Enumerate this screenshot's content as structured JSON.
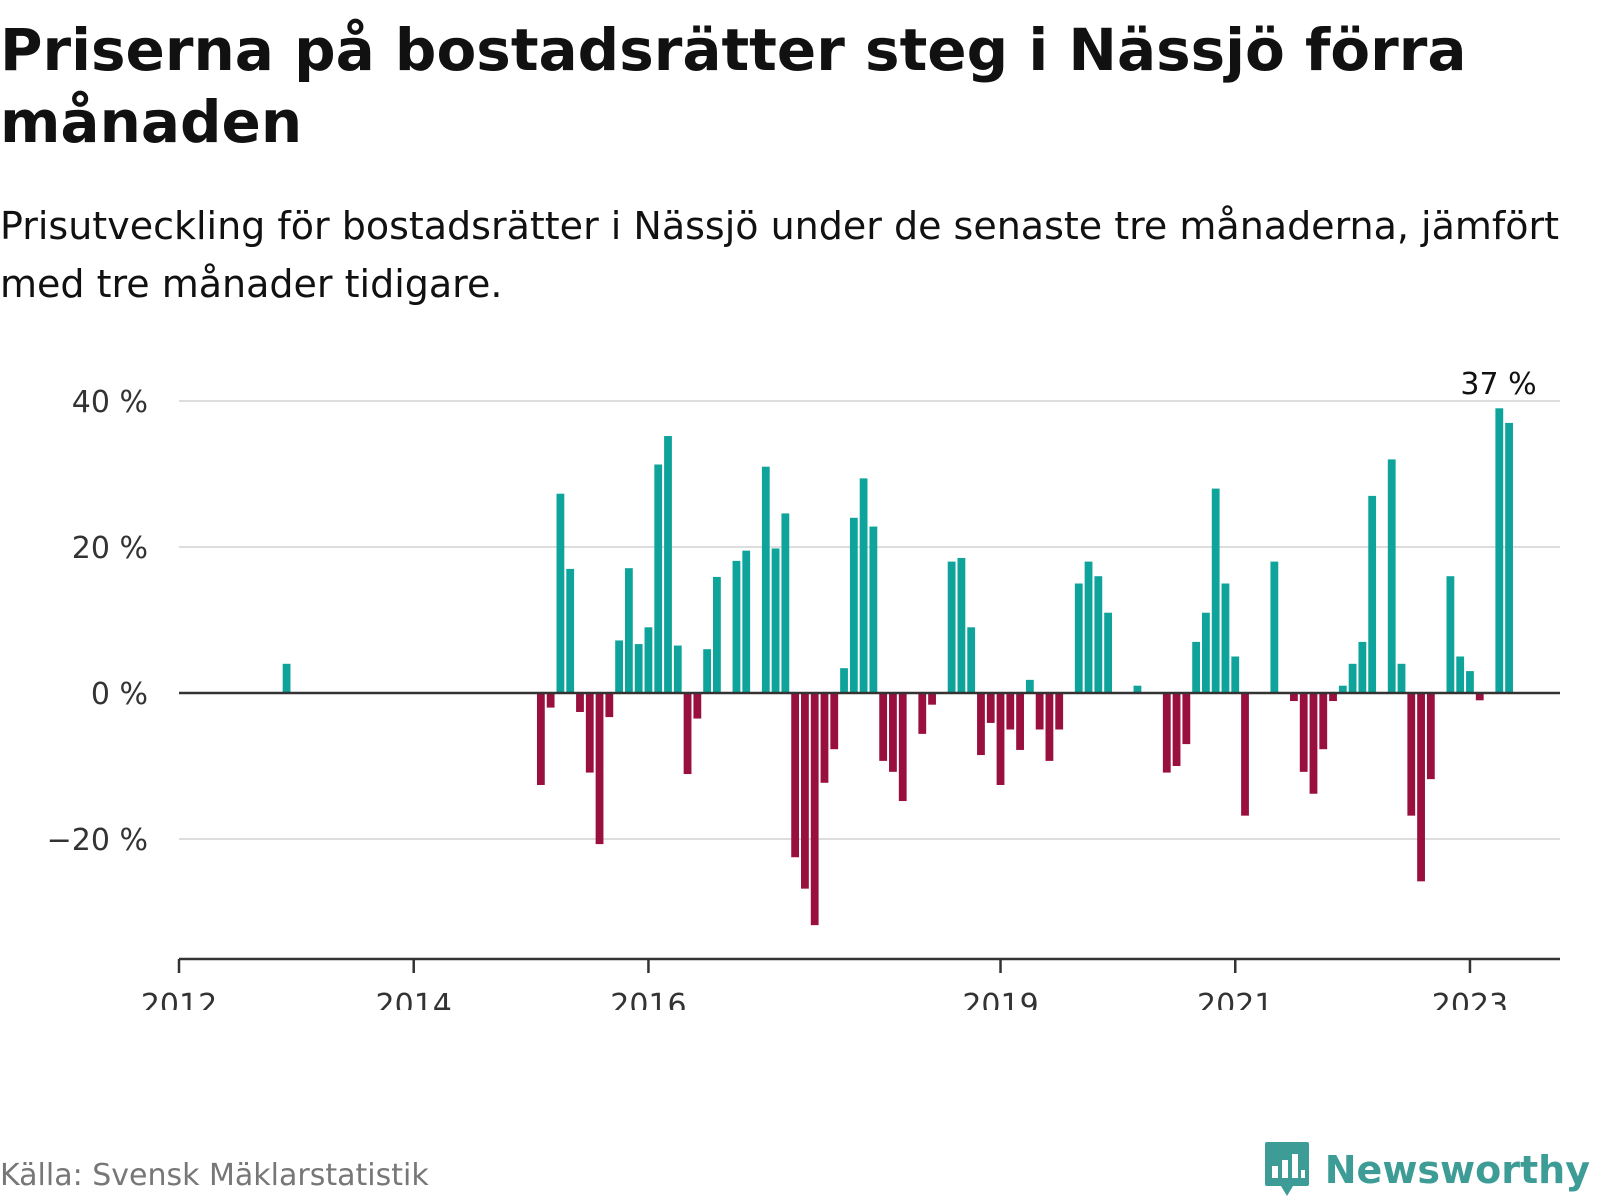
{
  "header": {
    "title": "Priserna på bostadsrätter steg i Nässjö förra månaden",
    "subtitle": "Prisutveckling för bostadsrätter i Nässjö under de senaste tre månaderna, jämfört med tre månader tidigare."
  },
  "footer": {
    "source": "Källa: Svensk Mäklarstatistik",
    "brand": "Newsworthy"
  },
  "colors": {
    "positive": "#0ea49b",
    "negative": "#990f3d",
    "grid": "#dddddd",
    "axis": "#333333",
    "brand": "#3e9c96"
  },
  "chart_data": {
    "type": "bar",
    "ylim": [
      -36,
      40
    ],
    "y_ticks": [
      {
        "value": 40,
        "label": "40 %"
      },
      {
        "value": 20,
        "label": "20 %"
      },
      {
        "value": 0,
        "label": "0 %"
      },
      {
        "value": -20,
        "label": "−20 %"
      }
    ],
    "x_ticks": [
      {
        "x": "2012-01",
        "label": "2012"
      },
      {
        "x": "2014-01",
        "label": "2014"
      },
      {
        "x": "2016-01",
        "label": "2016"
      },
      {
        "x": "2019-01",
        "label": "2019"
      },
      {
        "x": "2021-01",
        "label": "2021"
      },
      {
        "x": "2023-01",
        "label": "2023"
      }
    ],
    "xlim": [
      "2012-01",
      "2023-08"
    ],
    "annotation": {
      "x": "2023-03",
      "text": "37 %"
    },
    "points": [
      {
        "x": "2012-12",
        "y": 4
      },
      {
        "x": "2015-02",
        "y": -12.6
      },
      {
        "x": "2015-03",
        "y": -2
      },
      {
        "x": "2015-04",
        "y": 27.3
      },
      {
        "x": "2015-05",
        "y": 17
      },
      {
        "x": "2015-06",
        "y": -2.6
      },
      {
        "x": "2015-07",
        "y": -10.9
      },
      {
        "x": "2015-08",
        "y": -20.7
      },
      {
        "x": "2015-09",
        "y": -3.3
      },
      {
        "x": "2015-10",
        "y": 7.2
      },
      {
        "x": "2015-11",
        "y": 17.1
      },
      {
        "x": "2015-12",
        "y": 6.7
      },
      {
        "x": "2016-01",
        "y": 9
      },
      {
        "x": "2016-02",
        "y": 31.3
      },
      {
        "x": "2016-03",
        "y": 35.2
      },
      {
        "x": "2016-04",
        "y": 6.5
      },
      {
        "x": "2016-05",
        "y": -11.1
      },
      {
        "x": "2016-06",
        "y": -3.5
      },
      {
        "x": "2016-07",
        "y": 6
      },
      {
        "x": "2016-08",
        "y": 15.9
      },
      {
        "x": "2016-10",
        "y": 18.1
      },
      {
        "x": "2016-11",
        "y": 19.5
      },
      {
        "x": "2017-01",
        "y": 31
      },
      {
        "x": "2017-02",
        "y": 19.8
      },
      {
        "x": "2017-03",
        "y": 24.6
      },
      {
        "x": "2017-04",
        "y": -22.5
      },
      {
        "x": "2017-05",
        "y": -26.8
      },
      {
        "x": "2017-06",
        "y": -31.8
      },
      {
        "x": "2017-07",
        "y": -12.3
      },
      {
        "x": "2017-08",
        "y": -7.7
      },
      {
        "x": "2017-09",
        "y": 3.4
      },
      {
        "x": "2017-10",
        "y": 24
      },
      {
        "x": "2017-11",
        "y": 29.4
      },
      {
        "x": "2017-12",
        "y": 22.8
      },
      {
        "x": "2018-01",
        "y": -9.3
      },
      {
        "x": "2018-02",
        "y": -10.8
      },
      {
        "x": "2018-03",
        "y": -14.8
      },
      {
        "x": "2018-05",
        "y": -5.6
      },
      {
        "x": "2018-06",
        "y": -1.6
      },
      {
        "x": "2018-08",
        "y": 18
      },
      {
        "x": "2018-09",
        "y": 18.5
      },
      {
        "x": "2018-10",
        "y": 9
      },
      {
        "x": "2018-11",
        "y": -8.5
      },
      {
        "x": "2018-12",
        "y": -4.1
      },
      {
        "x": "2019-01",
        "y": -12.6
      },
      {
        "x": "2019-02",
        "y": -5
      },
      {
        "x": "2019-03",
        "y": -7.8
      },
      {
        "x": "2019-04",
        "y": 1.8
      },
      {
        "x": "2019-05",
        "y": -5
      },
      {
        "x": "2019-06",
        "y": -9.3
      },
      {
        "x": "2019-07",
        "y": -5
      },
      {
        "x": "2019-09",
        "y": 15
      },
      {
        "x": "2019-10",
        "y": 18
      },
      {
        "x": "2019-11",
        "y": 16
      },
      {
        "x": "2019-12",
        "y": 11
      },
      {
        "x": "2020-03",
        "y": 1
      },
      {
        "x": "2020-06",
        "y": -10.9
      },
      {
        "x": "2020-07",
        "y": -10
      },
      {
        "x": "2020-08",
        "y": -7
      },
      {
        "x": "2020-09",
        "y": 7
      },
      {
        "x": "2020-10",
        "y": 11
      },
      {
        "x": "2020-11",
        "y": 28
      },
      {
        "x": "2020-12",
        "y": 15
      },
      {
        "x": "2021-01",
        "y": 5
      },
      {
        "x": "2021-02",
        "y": -16.8
      },
      {
        "x": "2021-05",
        "y": 18
      },
      {
        "x": "2021-07",
        "y": -1.1
      },
      {
        "x": "2021-08",
        "y": -10.8
      },
      {
        "x": "2021-09",
        "y": -13.8
      },
      {
        "x": "2021-10",
        "y": -7.7
      },
      {
        "x": "2021-11",
        "y": -1.1
      },
      {
        "x": "2021-12",
        "y": 1
      },
      {
        "x": "2022-01",
        "y": 4
      },
      {
        "x": "2022-02",
        "y": 7
      },
      {
        "x": "2022-03",
        "y": 27
      },
      {
        "x": "2022-05",
        "y": 32
      },
      {
        "x": "2022-06",
        "y": 4
      },
      {
        "x": "2022-07",
        "y": -16.8
      },
      {
        "x": "2022-08",
        "y": -25.8
      },
      {
        "x": "2022-09",
        "y": -11.8
      },
      {
        "x": "2022-11",
        "y": 16
      },
      {
        "x": "2022-12",
        "y": 5
      },
      {
        "x": "2023-01",
        "y": 3
      },
      {
        "x": "2023-02",
        "y": -1
      },
      {
        "x": "2023-04",
        "y": 39
      },
      {
        "x": "2023-05",
        "y": 37
      }
    ]
  }
}
